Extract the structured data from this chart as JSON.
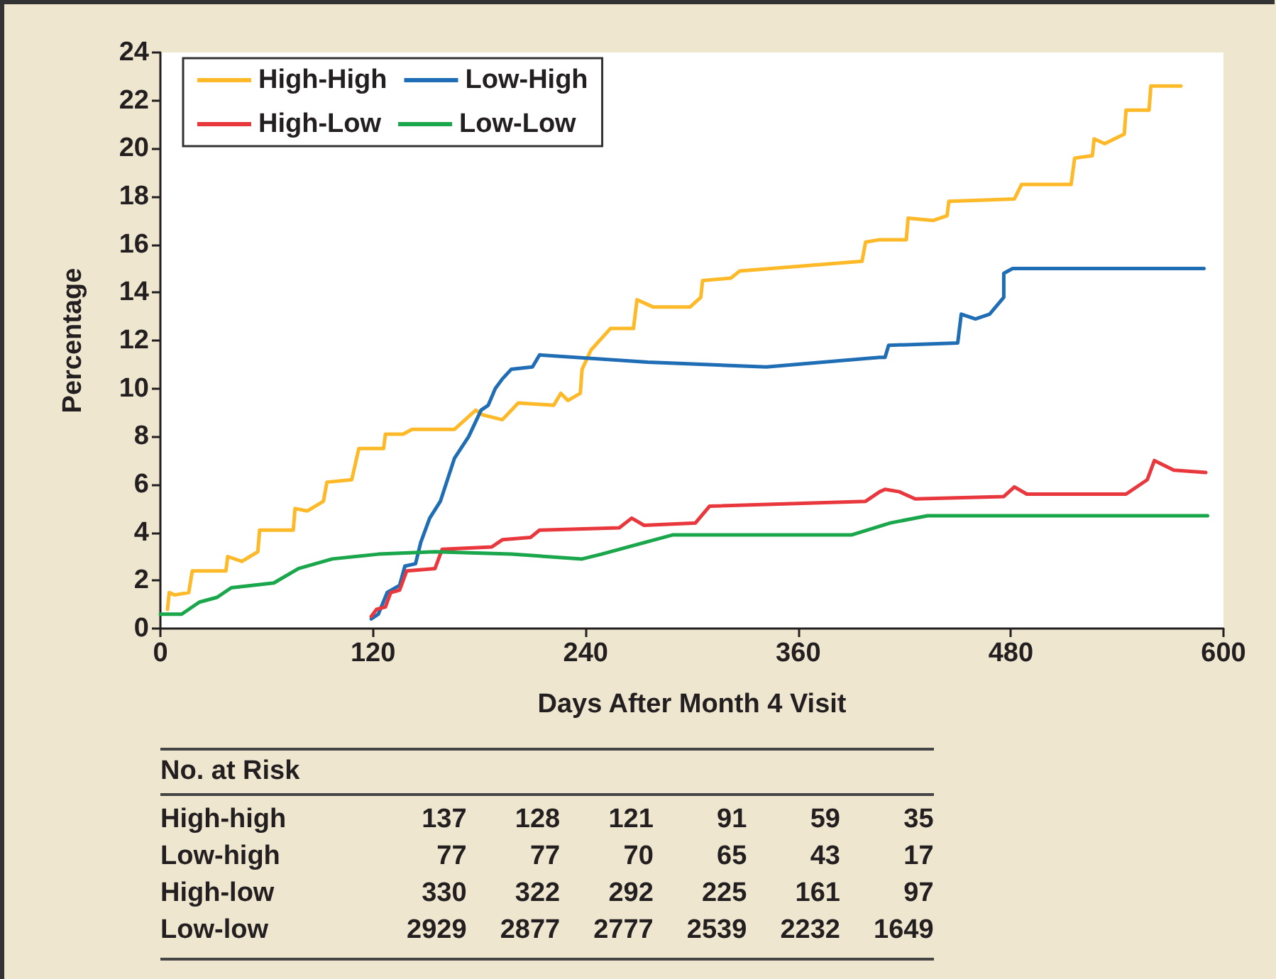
{
  "chart_data": {
    "type": "line",
    "xlabel": "Days After Month 4 Visit",
    "ylabel": "Percentage",
    "xlim": [
      0,
      600
    ],
    "xticks": [
      0,
      120,
      240,
      360,
      480,
      600
    ],
    "ylim": [
      0,
      24
    ],
    "yticks": [
      0,
      2,
      4,
      6,
      8,
      10,
      12,
      14,
      16,
      18,
      20,
      22,
      24
    ],
    "grid": false,
    "legend": "top left",
    "marker": "none",
    "line_style": "solid",
    "series": [
      {
        "name": "High-High",
        "color": "#fdb927",
        "x": [
          4,
          5,
          8,
          16,
          18,
          37,
          38,
          46,
          55,
          56,
          75,
          76,
          83,
          92,
          94,
          108,
          112,
          126,
          127,
          137,
          142,
          166,
          178,
          182,
          193,
          202,
          222,
          226,
          230,
          237,
          238,
          243,
          254,
          267,
          269,
          278,
          299,
          305,
          306,
          322,
          327,
          396,
          398,
          406,
          421,
          422,
          436,
          444,
          445,
          482,
          486,
          514,
          516,
          526,
          527,
          533,
          544,
          545,
          558,
          559,
          576
        ],
        "values": [
          0.8,
          1.5,
          1.4,
          1.5,
          2.4,
          2.4,
          3.0,
          2.8,
          3.2,
          4.1,
          4.1,
          5.0,
          4.9,
          5.3,
          6.1,
          6.2,
          7.5,
          7.5,
          8.1,
          8.1,
          8.3,
          8.3,
          9.1,
          8.9,
          8.7,
          9.4,
          9.3,
          9.8,
          9.5,
          9.8,
          10.8,
          11.6,
          12.5,
          12.5,
          13.7,
          13.4,
          13.4,
          13.8,
          14.5,
          14.6,
          14.9,
          15.3,
          16.1,
          16.2,
          16.2,
          17.1,
          17.0,
          17.2,
          17.8,
          17.9,
          18.5,
          18.5,
          19.6,
          19.7,
          20.4,
          20.2,
          20.6,
          21.6,
          21.6,
          22.6,
          22.6
        ]
      },
      {
        "name": "Low-High",
        "color": "#1f6db5",
        "x": [
          119,
          123,
          128,
          135,
          138,
          144,
          147,
          152,
          158,
          162,
          166,
          174,
          181,
          185,
          189,
          193,
          198,
          210,
          214,
          275,
          342,
          406,
          409,
          411,
          450,
          452,
          460,
          468,
          476,
          476,
          481,
          589
        ],
        "values": [
          0.4,
          0.6,
          1.5,
          1.8,
          2.6,
          2.7,
          3.6,
          4.6,
          5.3,
          6.2,
          7.1,
          8.0,
          9.1,
          9.3,
          10.0,
          10.4,
          10.8,
          10.9,
          11.4,
          11.1,
          10.9,
          11.3,
          11.3,
          11.8,
          11.9,
          13.1,
          12.9,
          13.1,
          13.8,
          14.8,
          15.0,
          15.0
        ]
      },
      {
        "name": "High-Low",
        "color": "#e8383d",
        "x": [
          119,
          122,
          127,
          130,
          135,
          139,
          155,
          159,
          187,
          193,
          209,
          214,
          259,
          266,
          273,
          302,
          310,
          398,
          406,
          409,
          417,
          426,
          476,
          482,
          489,
          545,
          557,
          561,
          572,
          590
        ],
        "values": [
          0.5,
          0.8,
          0.9,
          1.5,
          1.6,
          2.4,
          2.5,
          3.3,
          3.4,
          3.7,
          3.8,
          4.1,
          4.2,
          4.6,
          4.3,
          4.4,
          5.1,
          5.3,
          5.7,
          5.8,
          5.7,
          5.4,
          5.5,
          5.9,
          5.6,
          5.6,
          6.2,
          7.0,
          6.6,
          6.5
        ]
      },
      {
        "name": "Low-Low",
        "color": "#1aa64a",
        "x": [
          0,
          12,
          22,
          32,
          40,
          64,
          78,
          97,
          123,
          155,
          198,
          238,
          249,
          289,
          385,
          390,
          412,
          433,
          591
        ],
        "values": [
          0.6,
          0.6,
          1.1,
          1.3,
          1.7,
          1.9,
          2.5,
          2.9,
          3.1,
          3.2,
          3.1,
          2.9,
          3.1,
          3.9,
          3.9,
          3.9,
          4.4,
          4.7,
          4.7
        ]
      }
    ],
    "annotations": [
      "No. at Risk",
      "High-high",
      "137",
      "128",
      "121",
      "91",
      "59",
      "35",
      "Low-high",
      "77",
      "77",
      "70",
      "65",
      "43",
      "17",
      "High-low",
      "330",
      "322",
      "292",
      "225",
      "161",
      "97",
      "Low-low",
      "2929",
      "2877",
      "2777",
      "2539",
      "2232",
      "1649"
    ]
  }
}
